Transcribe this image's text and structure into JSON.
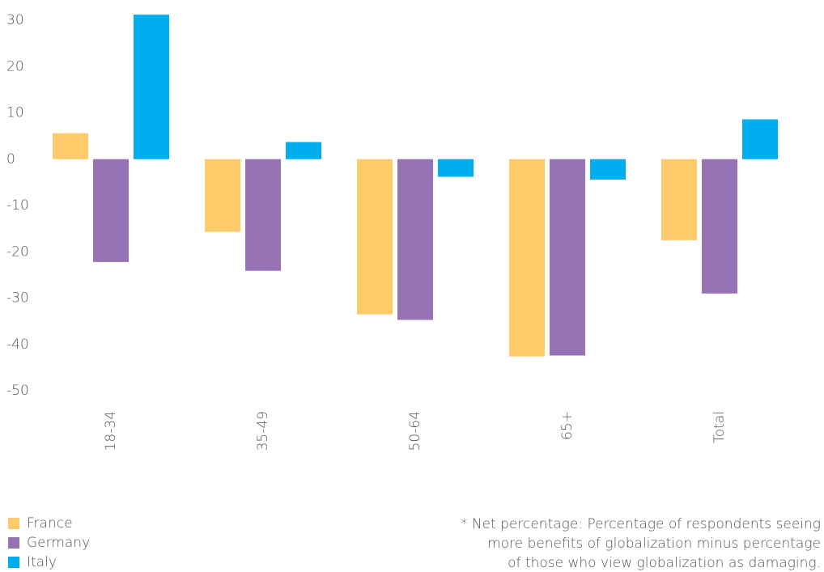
{
  "chart_data": {
    "type": "bar",
    "categories": [
      "18-34",
      "35-49",
      "50-64",
      "65+",
      "Total"
    ],
    "series": [
      {
        "name": "France",
        "color": "#fdcb6a",
        "values": [
          5.6,
          -15.7,
          -33.5,
          -42.6,
          -17.5
        ]
      },
      {
        "name": "Germany",
        "color": "#9673b5",
        "values": [
          -22.2,
          -24.1,
          -34.7,
          -42.4,
          -29.0
        ]
      },
      {
        "name": "Italy",
        "color": "#00aeef",
        "values": [
          31.2,
          3.7,
          -3.8,
          -4.4,
          8.6
        ]
      }
    ],
    "ylim": [
      -50,
      30
    ],
    "yticks": [
      -50,
      -40,
      -30,
      -20,
      -10,
      0,
      10,
      20,
      30
    ],
    "grid": false,
    "legend": "bottom-left",
    "annotations": [
      "* Net percentage: Percentage of respondents seeing",
      "more benefits of globalization minus percentage",
      "of those who view globalization as damaging."
    ]
  }
}
